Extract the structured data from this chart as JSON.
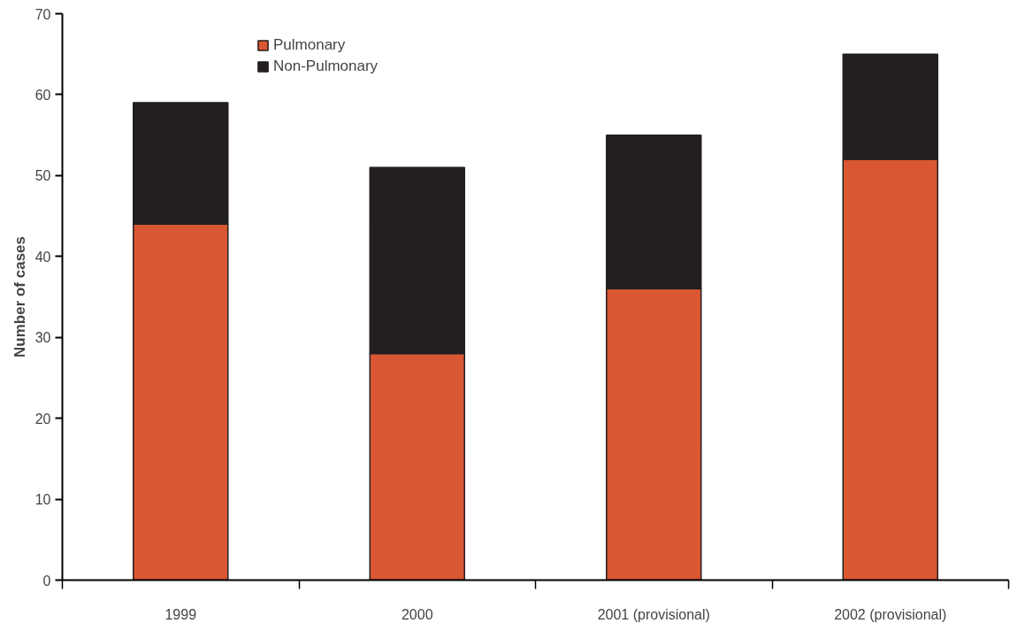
{
  "chart_data": {
    "type": "bar",
    "stacked": true,
    "ylabel": "Number of cases",
    "categories": [
      "1999",
      "2000",
      "2001 (provisional)",
      "2002 (provisional)"
    ],
    "series": [
      {
        "name": "Pulmonary",
        "color": "#d95733",
        "values": [
          44,
          28,
          36,
          52
        ]
      },
      {
        "name": "Non-Pulmonary",
        "color": "#231f20",
        "values": [
          15,
          23,
          19,
          13
        ]
      }
    ],
    "ylim": [
      0,
      70
    ],
    "yticks": [
      0,
      10,
      20,
      30,
      40,
      50,
      60,
      70
    ],
    "grid": false,
    "legend": "top left"
  }
}
